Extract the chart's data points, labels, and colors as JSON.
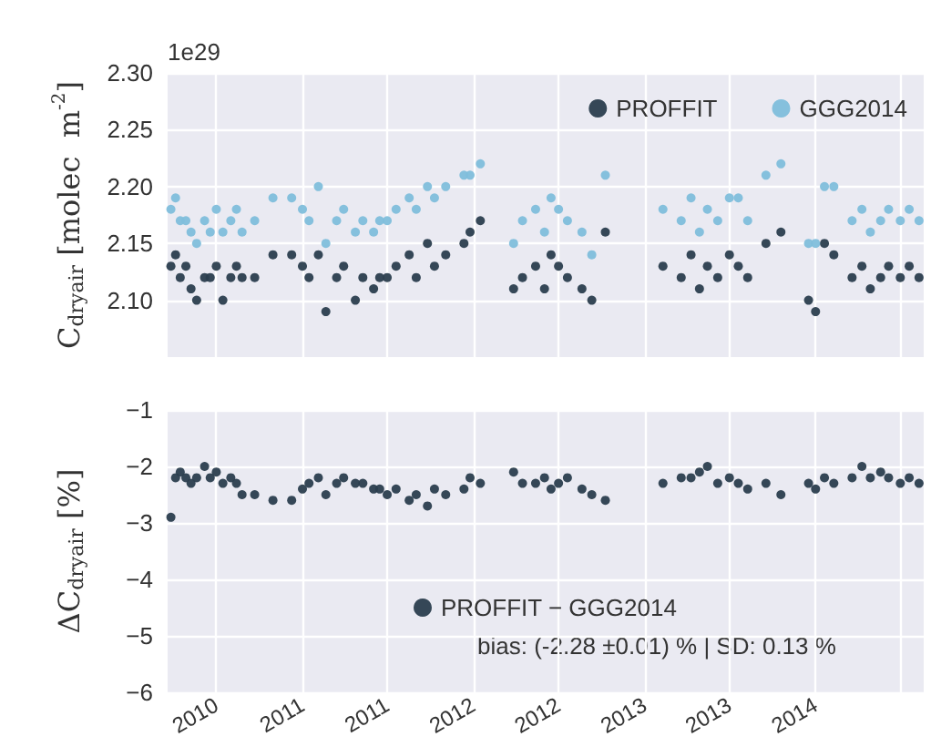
{
  "chart_data": [
    {
      "type": "scatter",
      "ylabel": "C$_{dryair}$ [molec  m$^{-2}$]",
      "annotations": [
        "1e29"
      ],
      "marker": "circle",
      "grid": true,
      "legend": "top right",
      "tick_labels": "y",
      "xlim": [
        "2010-03-19",
        "2014-08-20"
      ],
      "xticks": [
        {
          "value": "2010-07-01",
          "label": null
        },
        {
          "value": "2011-01-01",
          "label": null
        },
        {
          "value": "2011-07-01",
          "label": null
        },
        {
          "value": "2012-01-01",
          "label": null
        },
        {
          "value": "2012-07-01",
          "label": null
        },
        {
          "value": "2013-01-01",
          "label": null
        },
        {
          "value": "2013-07-01",
          "label": null
        },
        {
          "value": "2014-01-01",
          "label": null
        },
        {
          "value": "2014-07-01",
          "label": null
        }
      ],
      "ylim": [
        2.05,
        2.3
      ],
      "yticks": [
        {
          "value": 2.1,
          "label": "2.10"
        },
        {
          "value": 2.15,
          "label": "2.15"
        },
        {
          "value": 2.2,
          "label": "2.20"
        },
        {
          "value": 2.25,
          "label": "2.25"
        },
        {
          "value": 2.3,
          "label": "2.30"
        }
      ],
      "x": [
        "2010-03-26",
        "2010-04-05",
        "2010-04-15",
        "2010-04-27",
        "2010-05-08",
        "2010-05-20",
        "2010-06-06",
        "2010-06-18",
        "2010-07-01",
        "2010-07-15",
        "2010-08-01",
        "2010-08-13",
        "2010-08-25",
        "2010-09-21",
        "2010-10-30",
        "2010-12-09",
        "2011-01-01",
        "2011-01-15",
        "2011-02-04",
        "2011-02-20",
        "2011-03-15",
        "2011-03-30",
        "2011-04-24",
        "2011-05-10",
        "2011-06-02",
        "2011-06-15",
        "2011-07-01",
        "2011-07-20",
        "2011-08-17",
        "2011-09-01",
        "2011-09-25",
        "2011-10-10",
        "2011-11-03",
        "2011-12-12",
        "2011-12-25",
        "2012-01-16",
        "2012-03-27",
        "2012-04-15",
        "2012-05-13",
        "2012-06-01",
        "2012-06-15",
        "2012-07-01",
        "2012-07-20",
        "2012-08-20",
        "2012-09-10",
        "2012-10-09",
        "2013-02-09",
        "2013-03-20",
        "2013-04-10",
        "2013-04-28",
        "2013-05-15",
        "2013-06-06",
        "2013-07-01",
        "2013-07-20",
        "2013-08-09",
        "2013-09-17",
        "2013-10-19",
        "2013-12-17",
        "2014-01-01",
        "2014-01-20",
        "2014-02-09",
        "2014-03-20",
        "2014-04-10",
        "2014-04-28",
        "2014-05-20",
        "2014-06-06",
        "2014-07-01",
        "2014-07-20",
        "2014-08-10"
      ],
      "series": [
        {
          "name": "PROFFIT",
          "color": "#2b3e4e",
          "values": [
            2.13,
            2.14,
            2.12,
            2.13,
            2.11,
            2.1,
            2.12,
            2.12,
            2.13,
            2.1,
            2.12,
            2.13,
            2.12,
            2.12,
            2.14,
            2.14,
            2.13,
            2.12,
            2.14,
            2.09,
            2.12,
            2.13,
            2.1,
            2.12,
            2.11,
            2.12,
            2.12,
            2.13,
            2.14,
            2.12,
            2.15,
            2.13,
            2.14,
            2.15,
            2.16,
            2.17,
            2.11,
            2.12,
            2.13,
            2.11,
            2.14,
            2.13,
            2.12,
            2.11,
            2.1,
            2.16,
            2.13,
            2.12,
            2.14,
            2.11,
            2.13,
            2.12,
            2.14,
            2.13,
            2.12,
            2.15,
            2.16,
            2.1,
            2.09,
            2.15,
            2.14,
            2.12,
            2.13,
            2.11,
            2.12,
            2.13,
            2.12,
            2.13,
            2.12
          ]
        },
        {
          "name": "GGG2014",
          "color": "#80bedb",
          "values": [
            2.18,
            2.19,
            2.17,
            2.17,
            2.16,
            2.15,
            2.17,
            2.16,
            2.18,
            2.16,
            2.17,
            2.18,
            2.16,
            2.17,
            2.19,
            2.19,
            2.18,
            2.17,
            2.2,
            2.15,
            2.17,
            2.18,
            2.16,
            2.17,
            2.16,
            2.17,
            2.17,
            2.18,
            2.19,
            2.18,
            2.2,
            2.19,
            2.2,
            2.21,
            2.21,
            2.22,
            2.15,
            2.17,
            2.18,
            2.16,
            2.19,
            2.18,
            2.17,
            2.16,
            2.14,
            2.21,
            2.18,
            2.17,
            2.19,
            2.16,
            2.18,
            2.17,
            2.19,
            2.19,
            2.17,
            2.21,
            2.22,
            2.15,
            2.15,
            2.2,
            2.2,
            2.17,
            2.18,
            2.16,
            2.17,
            2.18,
            2.17,
            2.18,
            2.17
          ]
        }
      ]
    },
    {
      "type": "scatter",
      "ylabel": "ΔC$_{dryair}$ [%]",
      "annotations": [
        "bias: (-2.28 ±0.01) % | SD: 0.13 %"
      ],
      "marker": "circle",
      "grid": true,
      "legend": "bottom",
      "xlim": [
        "2010-03-19",
        "2014-08-20"
      ],
      "xticks": [
        {
          "value": "2010-07-01",
          "label": "2010"
        },
        {
          "value": "2011-01-01",
          "label": "2011"
        },
        {
          "value": "2011-07-01",
          "label": "2011"
        },
        {
          "value": "2012-01-01",
          "label": "2012"
        },
        {
          "value": "2012-07-01",
          "label": "2012"
        },
        {
          "value": "2013-01-01",
          "label": "2013"
        },
        {
          "value": "2013-07-01",
          "label": "2013"
        },
        {
          "value": "2014-01-01",
          "label": "2014"
        },
        {
          "value": "2014-07-01",
          "label": null
        }
      ],
      "ylim": [
        -6,
        -1
      ],
      "yticks": [
        {
          "value": -6,
          "label": "−6"
        },
        {
          "value": -5,
          "label": "−5"
        },
        {
          "value": -4,
          "label": "−4"
        },
        {
          "value": -3,
          "label": "−3"
        },
        {
          "value": -2,
          "label": "−2"
        },
        {
          "value": -1,
          "label": "−1"
        }
      ],
      "x": [
        "2010-03-26",
        "2010-04-05",
        "2010-04-15",
        "2010-04-27",
        "2010-05-08",
        "2010-05-20",
        "2010-06-06",
        "2010-06-18",
        "2010-07-01",
        "2010-07-15",
        "2010-08-01",
        "2010-08-13",
        "2010-08-25",
        "2010-09-21",
        "2010-10-30",
        "2010-12-09",
        "2011-01-01",
        "2011-01-15",
        "2011-02-04",
        "2011-02-20",
        "2011-03-15",
        "2011-03-30",
        "2011-04-24",
        "2011-05-10",
        "2011-06-02",
        "2011-06-15",
        "2011-07-01",
        "2011-07-20",
        "2011-08-17",
        "2011-09-01",
        "2011-09-25",
        "2011-10-10",
        "2011-11-03",
        "2011-12-12",
        "2011-12-25",
        "2012-01-16",
        "2012-03-27",
        "2012-04-15",
        "2012-05-13",
        "2012-06-01",
        "2012-06-15",
        "2012-07-01",
        "2012-07-20",
        "2012-08-20",
        "2012-09-10",
        "2012-10-09",
        "2013-02-09",
        "2013-03-20",
        "2013-04-10",
        "2013-04-28",
        "2013-05-15",
        "2013-06-06",
        "2013-07-01",
        "2013-07-20",
        "2013-08-09",
        "2013-09-17",
        "2013-10-19",
        "2013-12-17",
        "2014-01-01",
        "2014-01-20",
        "2014-02-09",
        "2014-03-20",
        "2014-04-10",
        "2014-04-28",
        "2014-05-20",
        "2014-06-06",
        "2014-07-01",
        "2014-07-20",
        "2014-08-10"
      ],
      "series": [
        {
          "name": "PROFFIT − GGG2014",
          "color": "#2b3e4e",
          "values": [
            -2.9,
            -2.2,
            -2.1,
            -2.2,
            -2.3,
            -2.2,
            -2.0,
            -2.2,
            -2.1,
            -2.3,
            -2.2,
            -2.3,
            -2.5,
            -2.5,
            -2.6,
            -2.6,
            -2.4,
            -2.3,
            -2.2,
            -2.5,
            -2.3,
            -2.2,
            -2.3,
            -2.3,
            -2.4,
            -2.4,
            -2.5,
            -2.4,
            -2.6,
            -2.5,
            -2.7,
            -2.4,
            -2.5,
            -2.4,
            -2.2,
            -2.3,
            -2.1,
            -2.3,
            -2.3,
            -2.2,
            -2.4,
            -2.3,
            -2.2,
            -2.4,
            -2.5,
            -2.6,
            -2.3,
            -2.2,
            -2.2,
            -2.1,
            -2.0,
            -2.3,
            -2.2,
            -2.3,
            -2.4,
            -2.3,
            -2.5,
            -2.3,
            -2.4,
            -2.2,
            -2.3,
            -2.2,
            -2.0,
            -2.2,
            -2.1,
            -2.2,
            -2.3,
            -2.2,
            -2.3
          ]
        }
      ]
    }
  ]
}
